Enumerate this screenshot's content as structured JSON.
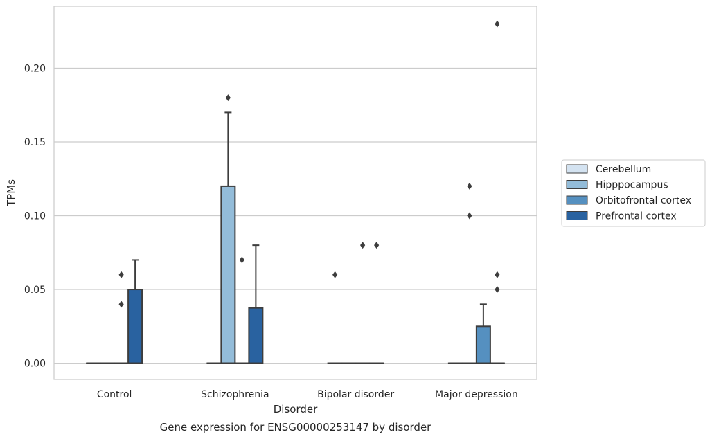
{
  "chart_data": {
    "type": "box",
    "title": "Gene expression for ENSG00000253147 by disorder",
    "xlabel": "Disorder",
    "ylabel": "TPMs",
    "categories": [
      "Control",
      "Schizophrenia",
      "Bipolar disorder",
      "Major depression"
    ],
    "ylim": [
      -0.011,
      0.242
    ],
    "yticks": [
      0.0,
      0.05,
      0.1,
      0.15,
      0.2
    ],
    "ytick_labels": [
      "0.00",
      "0.05",
      "0.10",
      "0.15",
      "0.20"
    ],
    "grid": true,
    "legend_position": "right",
    "colors": {
      "Cerebellum": "#d4e3f1",
      "Hipppocampus": "#93bcd9",
      "Orbitofrontal cortex": "#5590c0",
      "Prefrontal cortex": "#2962a0"
    },
    "series": [
      {
        "name": "Cerebellum",
        "boxes": [
          {
            "q1": 0,
            "median": 0,
            "q3": 0,
            "whisker_low": 0,
            "whisker_high": 0,
            "outliers": []
          },
          {
            "q1": 0,
            "median": 0,
            "q3": 0,
            "whisker_low": 0,
            "whisker_high": 0,
            "outliers": []
          },
          {
            "q1": 0,
            "median": 0,
            "q3": 0,
            "whisker_low": 0,
            "whisker_high": 0,
            "outliers": [
              0.06
            ]
          },
          {
            "q1": 0,
            "median": 0,
            "q3": 0,
            "whisker_low": 0,
            "whisker_high": 0,
            "outliers": []
          }
        ]
      },
      {
        "name": "Hipppocampus",
        "boxes": [
          {
            "q1": 0,
            "median": 0,
            "q3": 0,
            "whisker_low": 0,
            "whisker_high": 0,
            "outliers": []
          },
          {
            "q1": 0,
            "median": 0,
            "q3": 0.12,
            "whisker_low": 0,
            "whisker_high": 0.17,
            "outliers": [
              0.18
            ]
          },
          {
            "q1": 0,
            "median": 0,
            "q3": 0,
            "whisker_low": 0,
            "whisker_high": 0,
            "outliers": []
          },
          {
            "q1": 0,
            "median": 0,
            "q3": 0,
            "whisker_low": 0,
            "whisker_high": 0,
            "outliers": [
              0.12,
              0.1
            ]
          }
        ]
      },
      {
        "name": "Orbitofrontal cortex",
        "boxes": [
          {
            "q1": 0,
            "median": 0,
            "q3": 0,
            "whisker_low": 0,
            "whisker_high": 0,
            "outliers": [
              0.06,
              0.04
            ]
          },
          {
            "q1": 0,
            "median": 0,
            "q3": 0,
            "whisker_low": 0,
            "whisker_high": 0,
            "outliers": [
              0.07
            ]
          },
          {
            "q1": 0,
            "median": 0,
            "q3": 0,
            "whisker_low": 0,
            "whisker_high": 0,
            "outliers": [
              0.08
            ]
          },
          {
            "q1": 0,
            "median": 0,
            "q3": 0.025,
            "whisker_low": 0,
            "whisker_high": 0.04,
            "outliers": []
          }
        ]
      },
      {
        "name": "Prefrontal cortex",
        "boxes": [
          {
            "q1": 0,
            "median": 0,
            "q3": 0.05,
            "whisker_low": 0,
            "whisker_high": 0.07,
            "outliers": []
          },
          {
            "q1": 0,
            "median": 0,
            "q3": 0.0375,
            "whisker_low": 0,
            "whisker_high": 0.08,
            "outliers": []
          },
          {
            "q1": 0,
            "median": 0,
            "q3": 0,
            "whisker_low": 0,
            "whisker_high": 0,
            "outliers": [
              0.08
            ]
          },
          {
            "q1": 0,
            "median": 0,
            "q3": 0,
            "whisker_low": 0,
            "whisker_high": 0,
            "outliers": [
              0.23,
              0.06,
              0.05
            ]
          }
        ]
      }
    ]
  }
}
